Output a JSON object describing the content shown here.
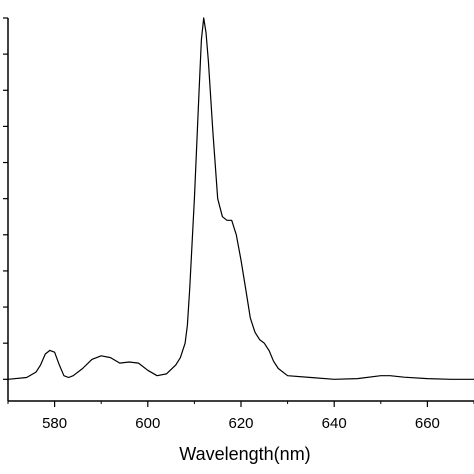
{
  "chart_data": {
    "type": "line",
    "title": "",
    "xlabel": "Wavelength(nm)",
    "ylabel": "",
    "xlim": [
      570,
      670
    ],
    "ylim": [
      -0.06,
      1.0
    ],
    "x_ticks": [
      580,
      600,
      620,
      640,
      660
    ],
    "y_ticks": [
      0,
      0.1,
      0.2,
      0.3,
      0.4,
      0.5,
      0.6,
      0.7,
      0.8,
      0.9,
      1.0
    ],
    "y_tick_labels_visible": false,
    "grid": false,
    "legend": "none",
    "line_color": "#000000",
    "series": [
      {
        "x": [
          570,
          574,
          576,
          577,
          578,
          579,
          580,
          581,
          582,
          583,
          584,
          586,
          588,
          590,
          592,
          594,
          596,
          598,
          600,
          602,
          604,
          606,
          607,
          608,
          608.5,
          609,
          610,
          611,
          611.5,
          612,
          612.5,
          613,
          614,
          615,
          616,
          617,
          618,
          619,
          620,
          621,
          622,
          623,
          624,
          625,
          626,
          627,
          628,
          630,
          635,
          640,
          645,
          650,
          652,
          655,
          660,
          665,
          670
        ],
        "y": [
          0.0,
          0.005,
          0.02,
          0.04,
          0.07,
          0.08,
          0.075,
          0.04,
          0.01,
          0.005,
          0.01,
          0.03,
          0.055,
          0.065,
          0.06,
          0.045,
          0.048,
          0.045,
          0.025,
          0.01,
          0.015,
          0.04,
          0.06,
          0.1,
          0.15,
          0.25,
          0.5,
          0.8,
          0.94,
          1.0,
          0.96,
          0.88,
          0.68,
          0.5,
          0.45,
          0.44,
          0.44,
          0.4,
          0.33,
          0.25,
          0.17,
          0.13,
          0.11,
          0.1,
          0.08,
          0.05,
          0.03,
          0.01,
          0.005,
          0.0,
          0.002,
          0.01,
          0.01,
          0.006,
          0.002,
          0.0,
          0.0
        ]
      }
    ]
  }
}
